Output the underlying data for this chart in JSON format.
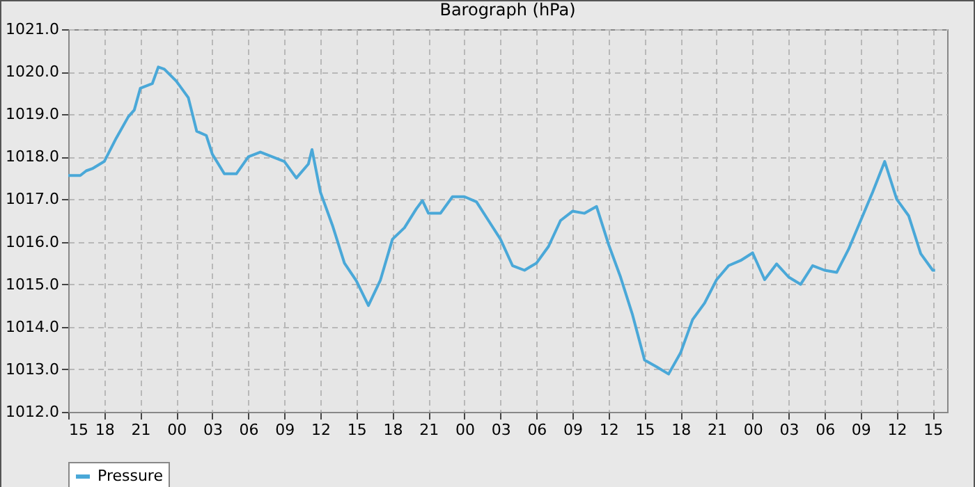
{
  "chart_data": {
    "type": "line",
    "title": "Barograph (hPa)",
    "x": [
      15,
      16,
      16.5,
      17,
      18,
      19,
      20,
      20.5,
      21,
      22,
      22.5,
      23,
      24,
      25,
      25.7,
      26.5,
      27,
      28,
      29,
      30,
      31,
      32,
      33,
      34,
      35,
      35.3,
      36,
      37,
      38,
      39,
      40,
      41,
      42,
      43,
      44,
      44.5,
      45,
      46,
      47,
      48,
      49,
      50,
      51,
      52,
      53,
      54,
      55,
      56,
      57,
      58,
      59,
      60,
      61,
      62,
      63,
      64,
      65,
      66,
      67,
      68,
      69,
      70,
      71,
      72,
      73,
      74,
      75,
      76,
      77,
      78,
      79,
      80,
      81,
      82,
      83,
      84,
      85,
      86,
      87,
      87.2
    ],
    "series": [
      {
        "name": "Pressure",
        "color": "#4aa8d8",
        "values": [
          1017.56,
          1017.56,
          1017.67,
          1017.72,
          1017.89,
          1018.44,
          1018.94,
          1019.1,
          1019.61,
          1019.72,
          1020.11,
          1020.06,
          1019.78,
          1019.39,
          1018.6,
          1018.5,
          1018.06,
          1017.6,
          1017.6,
          1018.0,
          1018.11,
          1018.0,
          1017.89,
          1017.5,
          1017.83,
          1018.17,
          1017.17,
          1016.39,
          1015.5,
          1015.08,
          1014.5,
          1015.1,
          1016.06,
          1016.33,
          1016.78,
          1016.97,
          1016.67,
          1016.67,
          1017.06,
          1017.06,
          1016.94,
          1016.5,
          1016.06,
          1015.44,
          1015.33,
          1015.5,
          1015.89,
          1016.5,
          1016.72,
          1016.67,
          1016.83,
          1015.94,
          1015.17,
          1014.28,
          1013.22,
          1013.06,
          1012.89,
          1013.39,
          1014.17,
          1014.56,
          1015.11,
          1015.44,
          1015.56,
          1015.74,
          1015.11,
          1015.48,
          1015.17,
          1015.0,
          1015.44,
          1015.33,
          1015.28,
          1015.83,
          1016.5,
          1017.17,
          1017.89,
          1017.0,
          1016.61,
          1015.72,
          1015.33,
          1015.33
        ]
      }
    ],
    "xlim": [
      15,
      88.2
    ],
    "xticks": [
      15,
      18,
      21,
      {
        "value": 24,
        "label": "00"
      },
      {
        "value": 27,
        "label": "03"
      },
      {
        "value": 30,
        "label": "06"
      },
      {
        "value": 33,
        "label": "09"
      },
      {
        "value": 36,
        "label": "12"
      },
      {
        "value": 39,
        "label": "15"
      },
      {
        "value": 42,
        "label": "18"
      },
      {
        "value": 45,
        "label": "21"
      },
      {
        "value": 48,
        "label": "00"
      },
      {
        "value": 51,
        "label": "03"
      },
      {
        "value": 54,
        "label": "06"
      },
      {
        "value": 57,
        "label": "09"
      },
      {
        "value": 60,
        "label": "12"
      },
      {
        "value": 63,
        "label": "15"
      },
      {
        "value": 66,
        "label": "18"
      },
      {
        "value": 69,
        "label": "21"
      },
      {
        "value": 72,
        "label": "00"
      },
      {
        "value": 75,
        "label": "03"
      },
      {
        "value": 78,
        "label": "06"
      },
      {
        "value": 81,
        "label": "09"
      },
      {
        "value": 84,
        "label": "12"
      },
      {
        "value": 87,
        "label": "15"
      }
    ],
    "ylim": [
      1012,
      1021
    ],
    "yticks": [
      {
        "value": 1012,
        "label": "1012.0"
      },
      {
        "value": 1013,
        "label": "1013.0"
      },
      {
        "value": 1014,
        "label": "1014.0"
      },
      {
        "value": 1015,
        "label": "1015.0"
      },
      {
        "value": 1016,
        "label": "1016.0"
      },
      {
        "value": 1017,
        "label": "1017.0"
      },
      {
        "value": 1018,
        "label": "1018.0"
      },
      {
        "value": 1019,
        "label": "1019.0"
      },
      {
        "value": 1020,
        "label": "1020.0"
      },
      {
        "value": 1021,
        "label": "1021.0"
      }
    ],
    "grid": true,
    "legend": "bottom"
  }
}
